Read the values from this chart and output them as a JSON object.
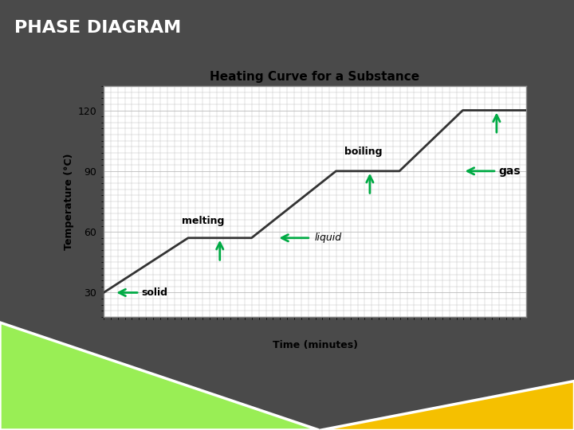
{
  "title": "PHASE DIAGRAM",
  "chart_title": "Heating Curve for a Substance",
  "bg_color": "#4a4a4a",
  "chart_bg": "#ffffff",
  "line_color": "#333333",
  "grid_color": "#bbbbbb",
  "ylabel": "Temperature (°C)",
  "xlabel": "Time (minutes)",
  "yticks": [
    30,
    60,
    90,
    120
  ],
  "ylim": [
    18,
    132
  ],
  "xlim": [
    0,
    10
  ],
  "curve_x": [
    0,
    2,
    3.5,
    5.5,
    7,
    8.5,
    10
  ],
  "curve_y": [
    30,
    57,
    57,
    90,
    90,
    120,
    120
  ],
  "arrow_color": "#00aa44",
  "title_fontsize": 16,
  "chart_title_fontsize": 11
}
